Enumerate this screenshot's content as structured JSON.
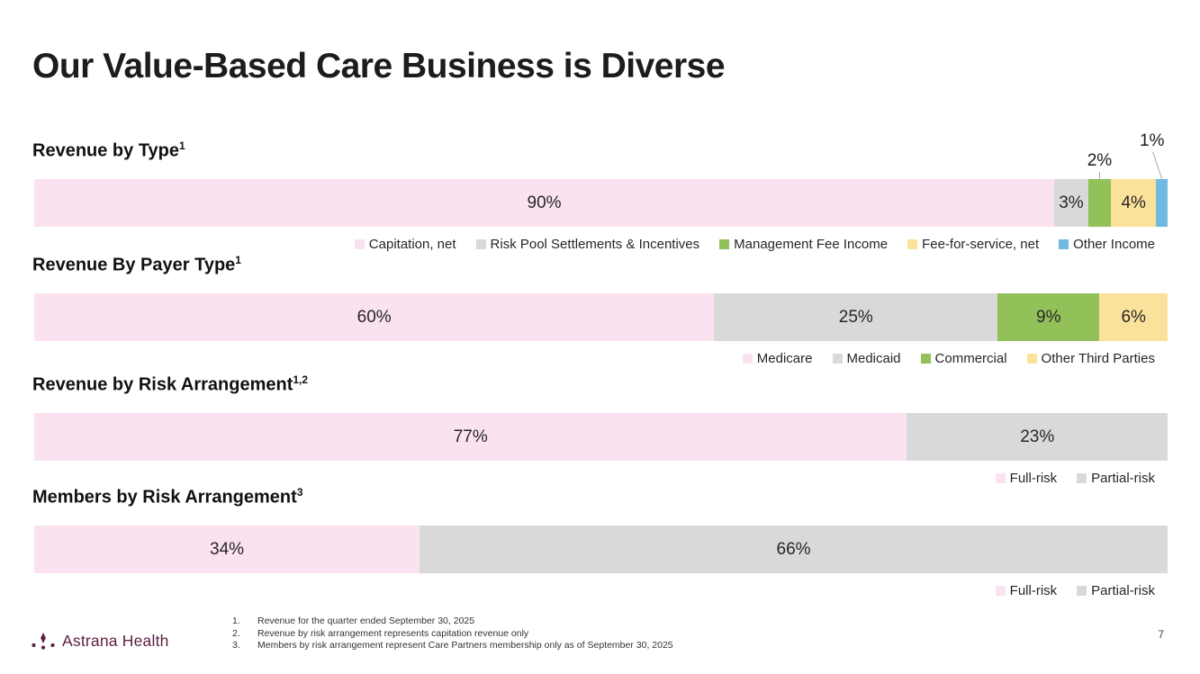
{
  "slide": {
    "title": "Our Value-Based Care Business is Diverse",
    "page_number": "7"
  },
  "colors": {
    "pink": "#FBE2F0",
    "gray": "#D9D9D9",
    "green": "#92C15A",
    "yellow": "#FBE29A",
    "blue": "#6FB9E2",
    "brand": "#5E2145",
    "leader_line": "#A6A6A6"
  },
  "chart_data": [
    {
      "type": "bar",
      "variant": "100%-stacked-horizontal",
      "title": "Revenue by Type",
      "footnote_refs": "1",
      "unit": "%",
      "legend_position": "bottom-right",
      "segments": [
        {
          "label": "Capitation, net",
          "value": 90,
          "display": "90%",
          "color_key": "pink",
          "label_style": "inside"
        },
        {
          "label": "Risk Pool Settlements & Incentives",
          "value": 3,
          "display": "3%",
          "color_key": "gray",
          "label_style": "inside"
        },
        {
          "label": "Management Fee Income",
          "value": 2,
          "display": "2%",
          "color_key": "green",
          "label_style": "callout"
        },
        {
          "label": "Fee-for-service, net",
          "value": 4,
          "display": "4%",
          "color_key": "yellow",
          "label_style": "inside"
        },
        {
          "label": "Other Income",
          "value": 1,
          "display": "1%",
          "color_key": "blue",
          "label_style": "callout"
        }
      ]
    },
    {
      "type": "bar",
      "variant": "100%-stacked-horizontal",
      "title": "Revenue By Payer Type",
      "footnote_refs": "1",
      "unit": "%",
      "legend_position": "bottom-right",
      "segments": [
        {
          "label": "Medicare",
          "value": 60,
          "display": "60%",
          "color_key": "pink",
          "label_style": "inside"
        },
        {
          "label": "Medicaid",
          "value": 25,
          "display": "25%",
          "color_key": "gray",
          "label_style": "inside"
        },
        {
          "label": "Commercial",
          "value": 9,
          "display": "9%",
          "color_key": "green",
          "label_style": "inside"
        },
        {
          "label": "Other Third Parties",
          "value": 6,
          "display": "6%",
          "color_key": "yellow",
          "label_style": "inside"
        }
      ]
    },
    {
      "type": "bar",
      "variant": "100%-stacked-horizontal",
      "title": "Revenue by Risk Arrangement",
      "footnote_refs": "1,2",
      "unit": "%",
      "legend_position": "bottom-right",
      "segments": [
        {
          "label": "Full-risk",
          "value": 77,
          "display": "77%",
          "color_key": "pink",
          "label_style": "inside"
        },
        {
          "label": "Partial-risk",
          "value": 23,
          "display": "23%",
          "color_key": "gray",
          "label_style": "inside"
        }
      ]
    },
    {
      "type": "bar",
      "variant": "100%-stacked-horizontal",
      "title": "Members by Risk Arrangement",
      "footnote_refs": "3",
      "unit": "%",
      "legend_position": "bottom-right",
      "segments": [
        {
          "label": "Full-risk",
          "value": 34,
          "display": "34%",
          "color_key": "pink",
          "label_style": "inside"
        },
        {
          "label": "Partial-risk",
          "value": 66,
          "display": "66%",
          "color_key": "gray",
          "label_style": "inside"
        }
      ]
    }
  ],
  "footnotes": [
    {
      "marker": "1.",
      "text": "Revenue for the quarter ended September 30, 2025"
    },
    {
      "marker": "2.",
      "text": "Revenue by risk arrangement represents capitation revenue only"
    },
    {
      "marker": "3.",
      "text": "Members by risk arrangement represent Care Partners membership only as of September 30, 2025"
    }
  ],
  "logo": {
    "name": "Astrana Health"
  }
}
